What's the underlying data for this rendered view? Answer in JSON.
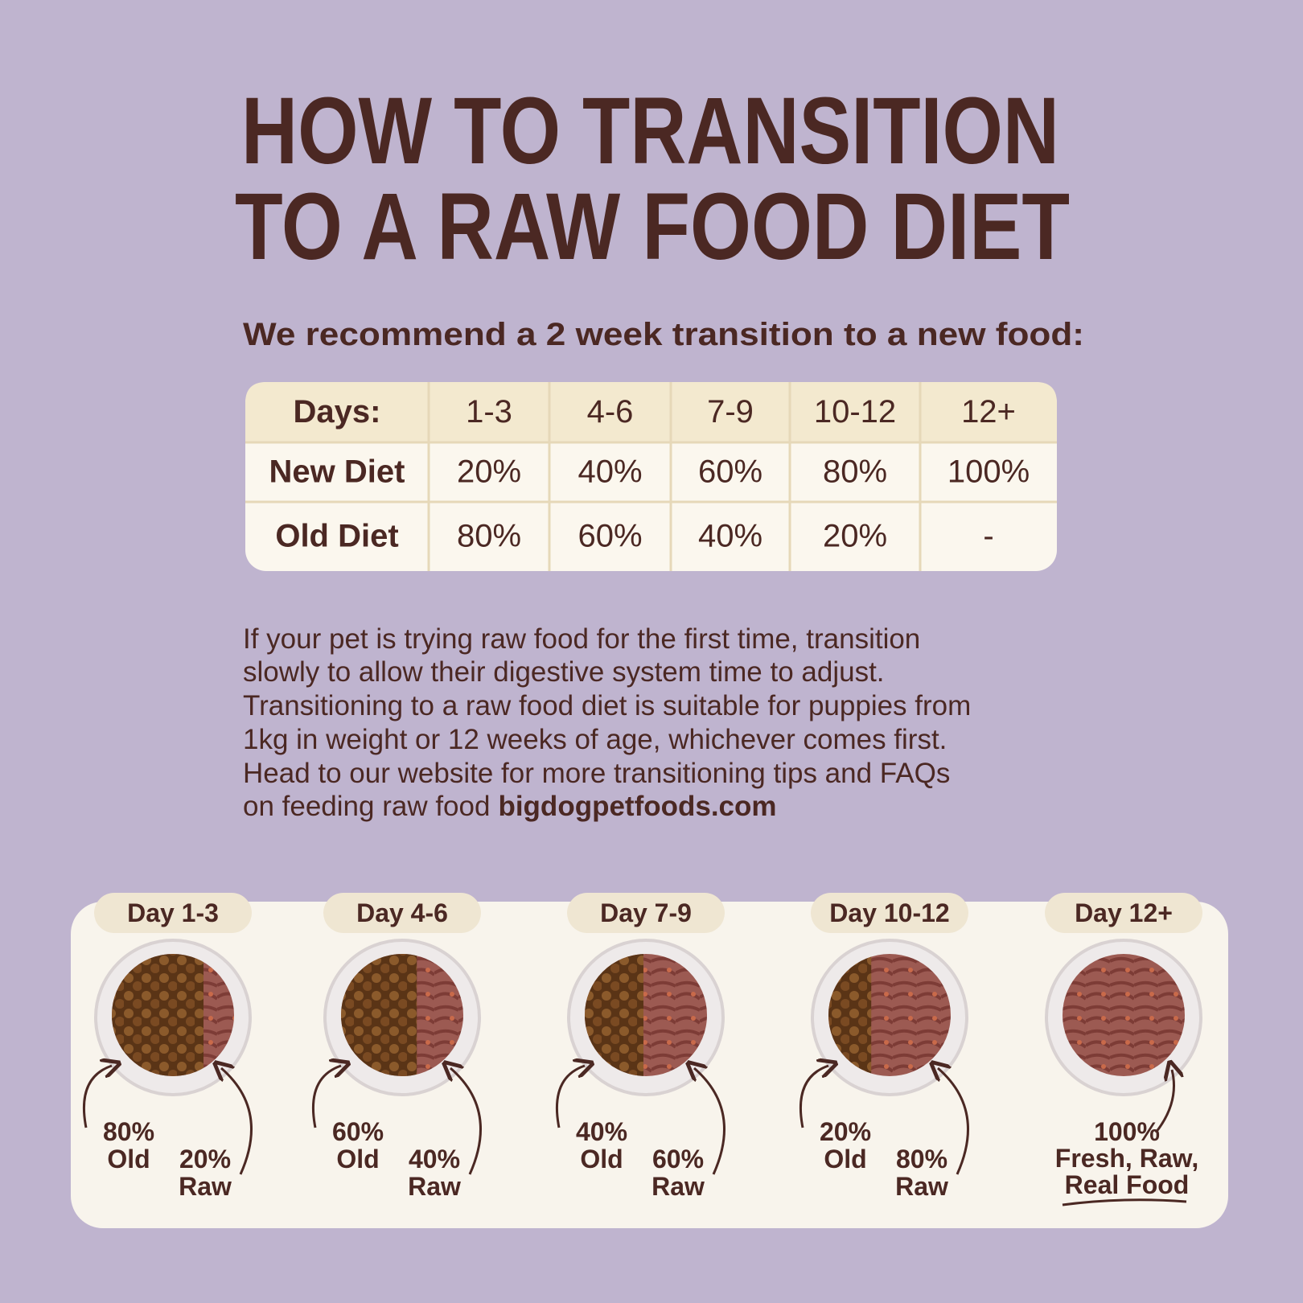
{
  "title": [
    "HOW TO TRANSITION",
    "TO A RAW FOOD DIET"
  ],
  "subtitle": "We recommend a 2 week transition to a new food:",
  "table": {
    "header": [
      "Days:",
      "1-3",
      "4-6",
      "7-9",
      "10-12",
      "12+"
    ],
    "rows": [
      [
        "New Diet",
        "20%",
        "40%",
        "60%",
        "80%",
        "100%"
      ],
      [
        "Old Diet",
        "80%",
        "60%",
        "40%",
        "20%",
        "-"
      ]
    ]
  },
  "paragraph": {
    "lines": [
      "If your pet is trying raw food for the first time, transition",
      "slowly to allow their digestive system time to adjust.",
      "Transitioning to a raw food diet is suitable for puppies from",
      "1kg in weight or 12 weeks of age, whichever comes first.",
      "Head to our website for more transitioning tips and  FAQs"
    ],
    "last_line": "on feeding raw food",
    "link": "bigdogpetfoods.com"
  },
  "stages": [
    {
      "label": "Day 1-3",
      "old_pct": "80%",
      "old": "Old",
      "new_pct": "20%",
      "new": "Raw"
    },
    {
      "label": "Day 4-6",
      "old_pct": "60%",
      "old": "Old",
      "new_pct": "40%",
      "new": "Raw"
    },
    {
      "label": "Day 7-9",
      "old_pct": "40%",
      "old": "Old",
      "new_pct": "60%",
      "new": "Raw"
    },
    {
      "label": "Day 10-12",
      "old_pct": "20%",
      "old": "Old",
      "new_pct": "80%",
      "new": "Raw"
    },
    {
      "label": "Day 12+",
      "lines": [
        "100%",
        "Fresh, Raw,",
        "Real Food"
      ]
    }
  ]
}
